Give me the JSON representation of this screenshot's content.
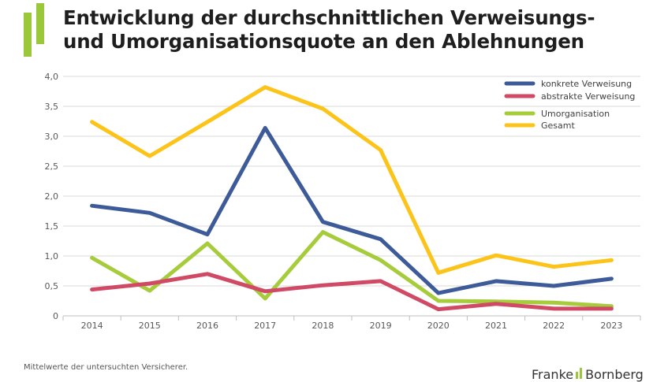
{
  "header": {
    "title_line1": "Entwicklung der durchschnittlichen Verweisungs-",
    "title_line2": "und Umorganisationsquote an den Ablehnungen"
  },
  "footer": {
    "note": "Mittelwerte der untersuchten Versicherer.",
    "brand_left": "Franke",
    "brand_right": "Bornberg"
  },
  "chart_data": {
    "type": "line",
    "title": "Entwicklung der durchschnittlichen Verweisungs- und Umorganisationsquote an den Ablehnungen",
    "xlabel": "",
    "ylabel": "",
    "categories": [
      "2014",
      "2015",
      "2016",
      "2017",
      "2018",
      "2019",
      "2020",
      "2021",
      "2022",
      "2023"
    ],
    "ylim": [
      0,
      4
    ],
    "yticks": [
      0,
      0.5,
      1,
      1.5,
      2,
      2.5,
      3,
      3.5,
      4
    ],
    "ytick_labels": [
      "0",
      "0,5",
      "1,0",
      "1,5",
      "2,0",
      "2,5",
      "3,0",
      "3,5",
      "4,0"
    ],
    "grid": true,
    "legend_position": "top-right",
    "series": [
      {
        "name": "konkrete Verweisung",
        "color": "#3d5a99",
        "values": [
          1.84,
          1.72,
          1.36,
          3.14,
          1.57,
          1.28,
          0.38,
          0.58,
          0.5,
          0.62
        ]
      },
      {
        "name": "abstrakte Verweisung",
        "color": "#d04a66",
        "values": [
          0.44,
          0.54,
          0.7,
          0.41,
          0.51,
          0.58,
          0.11,
          0.2,
          0.12,
          0.12
        ]
      },
      {
        "name": "Umorganisation",
        "color": "#a6cc3c",
        "values": [
          0.97,
          0.42,
          1.21,
          0.29,
          1.4,
          0.93,
          0.25,
          0.24,
          0.22,
          0.16
        ]
      },
      {
        "name": "Gesamt",
        "color": "#fcc419",
        "values": [
          3.24,
          2.67,
          3.24,
          3.82,
          3.46,
          2.77,
          0.72,
          1.01,
          0.82,
          0.93
        ]
      }
    ]
  }
}
